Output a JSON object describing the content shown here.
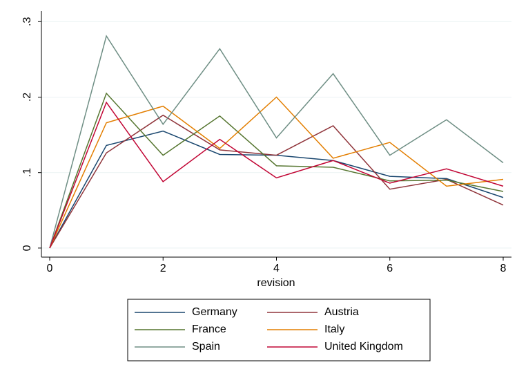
{
  "chart_data": {
    "type": "line",
    "x_label": "revision",
    "x": [
      0,
      1,
      2,
      3,
      4,
      5,
      6,
      7,
      8
    ],
    "xlim": [
      -0.146,
      8.146
    ],
    "xticks": [
      0,
      2,
      4,
      6,
      8
    ],
    "ylim": [
      -0.012,
      0.314
    ],
    "yticks": [
      0,
      {
        "value": 0.1,
        "label": ".1"
      },
      {
        "value": 0.2,
        "label": ".2"
      },
      {
        "value": 0.3,
        "label": ".3"
      }
    ],
    "grid": true,
    "legend": "bottom",
    "series": [
      {
        "name": "Germany",
        "color": "#1a476f",
        "values": [
          0,
          0.136,
          0.155,
          0.124,
          0.123,
          0.116,
          0.095,
          0.092,
          0.067
        ]
      },
      {
        "name": "Austria",
        "color": "#90353b",
        "values": [
          0,
          0.126,
          0.176,
          0.13,
          0.123,
          0.162,
          0.078,
          0.091,
          0.057
        ]
      },
      {
        "name": "France",
        "color": "#55752f",
        "values": [
          0,
          0.205,
          0.123,
          0.175,
          0.109,
          0.107,
          0.089,
          0.09,
          0.075
        ]
      },
      {
        "name": "Italy",
        "color": "#e37e00",
        "values": [
          0,
          0.166,
          0.188,
          0.132,
          0.2,
          0.119,
          0.14,
          0.082,
          0.091
        ]
      },
      {
        "name": "Spain",
        "color": "#6e8e84",
        "values": [
          0,
          0.281,
          0.164,
          0.264,
          0.146,
          0.231,
          0.123,
          0.17,
          0.113
        ]
      },
      {
        "name": "United Kingdom",
        "color": "#c10534",
        "values": [
          0,
          0.193,
          0.088,
          0.144,
          0.093,
          0.116,
          0.086,
          0.105,
          0.082
        ]
      }
    ]
  }
}
